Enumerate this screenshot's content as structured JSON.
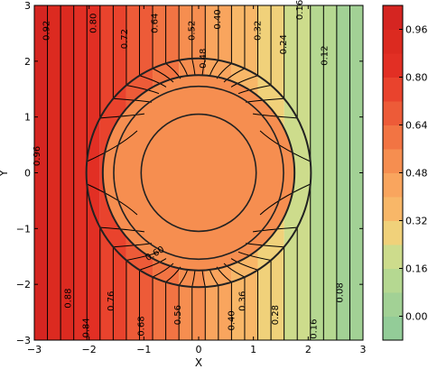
{
  "chart_data": {
    "type": "contour",
    "xlabel": "X",
    "ylabel": "Y",
    "xlim": [
      -3,
      3
    ],
    "ylim": [
      -3,
      3
    ],
    "x_ticks": [
      "−3",
      "−2",
      "−1",
      "0",
      "1",
      "2",
      "3"
    ],
    "y_ticks": [
      "−3",
      "−2",
      "−1",
      "0",
      "1",
      "2",
      "3"
    ],
    "grid": false,
    "inner_circle_value": 0.52,
    "annulus": {
      "inner_radius": 1.75,
      "outer_radius": 2.05
    },
    "contour_labels": [
      {
        "text": "0.92",
        "x": -2.78,
        "y": 2.55,
        "rot": -90
      },
      {
        "text": "0.80",
        "x": -1.92,
        "y": 2.68,
        "rot": -90
      },
      {
        "text": "0.72",
        "x": -1.35,
        "y": 2.4,
        "rot": -90
      },
      {
        "text": "0.64",
        "x": -0.8,
        "y": 2.68,
        "rot": -90
      },
      {
        "text": "0.52",
        "x": -0.12,
        "y": 2.55,
        "rot": -90
      },
      {
        "text": "0.48",
        "x": 0.08,
        "y": 2.05,
        "rot": -90
      },
      {
        "text": "0.40",
        "x": 0.35,
        "y": 2.75,
        "rot": -90
      },
      {
        "text": "0.32",
        "x": 1.08,
        "y": 2.55,
        "rot": -90
      },
      {
        "text": "0.24",
        "x": 1.55,
        "y": 2.3,
        "rot": -90
      },
      {
        "text": "0.16",
        "x": 1.85,
        "y": 2.92,
        "rot": -90
      },
      {
        "text": "0.12",
        "x": 2.3,
        "y": 2.1,
        "rot": -90
      },
      {
        "text": "0.96",
        "x": -2.95,
        "y": 0.3,
        "rot": -90
      },
      {
        "text": "0.88",
        "x": -2.38,
        "y": -2.25,
        "rot": -90
      },
      {
        "text": "0.76",
        "x": -1.6,
        "y": -2.3,
        "rot": -90
      },
      {
        "text": "0.68",
        "x": -1.05,
        "y": -2.75,
        "rot": -90
      },
      {
        "text": "0.84",
        "x": -2.05,
        "y": -2.78,
        "rot": -90
      },
      {
        "text": "0.60",
        "x": -0.8,
        "y": -1.45,
        "rot": -30
      },
      {
        "text": "0.56",
        "x": -0.38,
        "y": -2.55,
        "rot": -90
      },
      {
        "text": "0.40",
        "x": 0.6,
        "y": -2.65,
        "rot": -90
      },
      {
        "text": "0.36",
        "x": 0.8,
        "y": -2.3,
        "rot": -90
      },
      {
        "text": "0.28",
        "x": 1.4,
        "y": -2.55,
        "rot": -90
      },
      {
        "text": "0.16",
        "x": 2.1,
        "y": -2.8,
        "rot": -90
      },
      {
        "text": "0.08",
        "x": 2.58,
        "y": -2.15,
        "rot": -90
      }
    ],
    "colorbar": {
      "min": -0.08,
      "max": 1.04,
      "tick_values": [
        0.0,
        0.16,
        0.32,
        0.48,
        0.64,
        0.8,
        0.96
      ],
      "tick_labels": [
        "0.00",
        "0.16",
        "0.32",
        "0.48",
        "0.64",
        "0.80",
        "0.96"
      ],
      "colors": [
        "#93cc98",
        "#a2d195",
        "#b5d891",
        "#cddc8c",
        "#f0d17a",
        "#f8b768",
        "#f9a55e",
        "#f68e50",
        "#f27443",
        "#ed5b38",
        "#e9432d",
        "#e22f24",
        "#dc2a20",
        "#d52521"
      ]
    }
  }
}
